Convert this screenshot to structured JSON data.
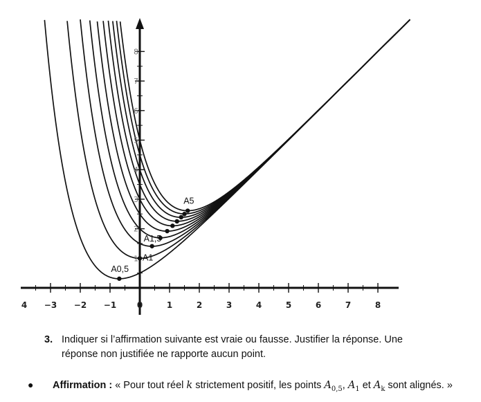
{
  "chart_data": {
    "type": "line",
    "x_ticks": [
      "4",
      "−3",
      "−2",
      "−1",
      "0",
      "1",
      "2",
      "3",
      "4",
      "5",
      "6",
      "7",
      "8"
    ],
    "y_ticks": [
      "1",
      "2",
      "3",
      "4",
      "5",
      "6",
      "7",
      "8"
    ],
    "xlim": [
      -4,
      8.3
    ],
    "ylim": [
      -0.4,
      9.2
    ],
    "series": [
      {
        "k": 0.5
      },
      {
        "k": 1
      },
      {
        "k": 1.5
      },
      {
        "k": 2
      },
      {
        "k": 2.5
      },
      {
        "k": 3
      },
      {
        "k": 3.5
      },
      {
        "k": 4
      },
      {
        "k": 4.5
      },
      {
        "k": 5
      }
    ],
    "points": [
      {
        "label": "A0,5",
        "x": -0.69,
        "y": 0.31
      },
      {
        "label": "A1",
        "x": 0,
        "y": 1
      },
      {
        "label": "A1,5",
        "x": 0.41,
        "y": 1.41
      },
      {
        "label": "",
        "x": 0.69,
        "y": 1.69
      },
      {
        "label": "",
        "x": 0.92,
        "y": 1.92
      },
      {
        "label": "",
        "x": 1.1,
        "y": 2.1
      },
      {
        "label": "",
        "x": 1.25,
        "y": 2.25
      },
      {
        "label": "",
        "x": 1.39,
        "y": 2.39
      },
      {
        "label": "",
        "x": 1.5,
        "y": 2.5
      },
      {
        "label": "A5",
        "x": 1.61,
        "y": 2.61
      }
    ]
  },
  "question": {
    "number": "3.",
    "text": "Indiquer si l’affirmation suivante est vraie ou fausse. Justifier la réponse. Une réponse non justifiée ne rapporte aucun point."
  },
  "affirmation": {
    "bullet": "●",
    "label": "Affirmation :",
    "open": "« Pour tout réel ",
    "k1": "k",
    "mid1": " strictement positif, les points ",
    "a": "A",
    "a_sub1": "0,5",
    "sep1": ", ",
    "a_sub2": "1",
    "sep2": " et ",
    "a_sub3": "k",
    "close": " sont alignés. »"
  }
}
